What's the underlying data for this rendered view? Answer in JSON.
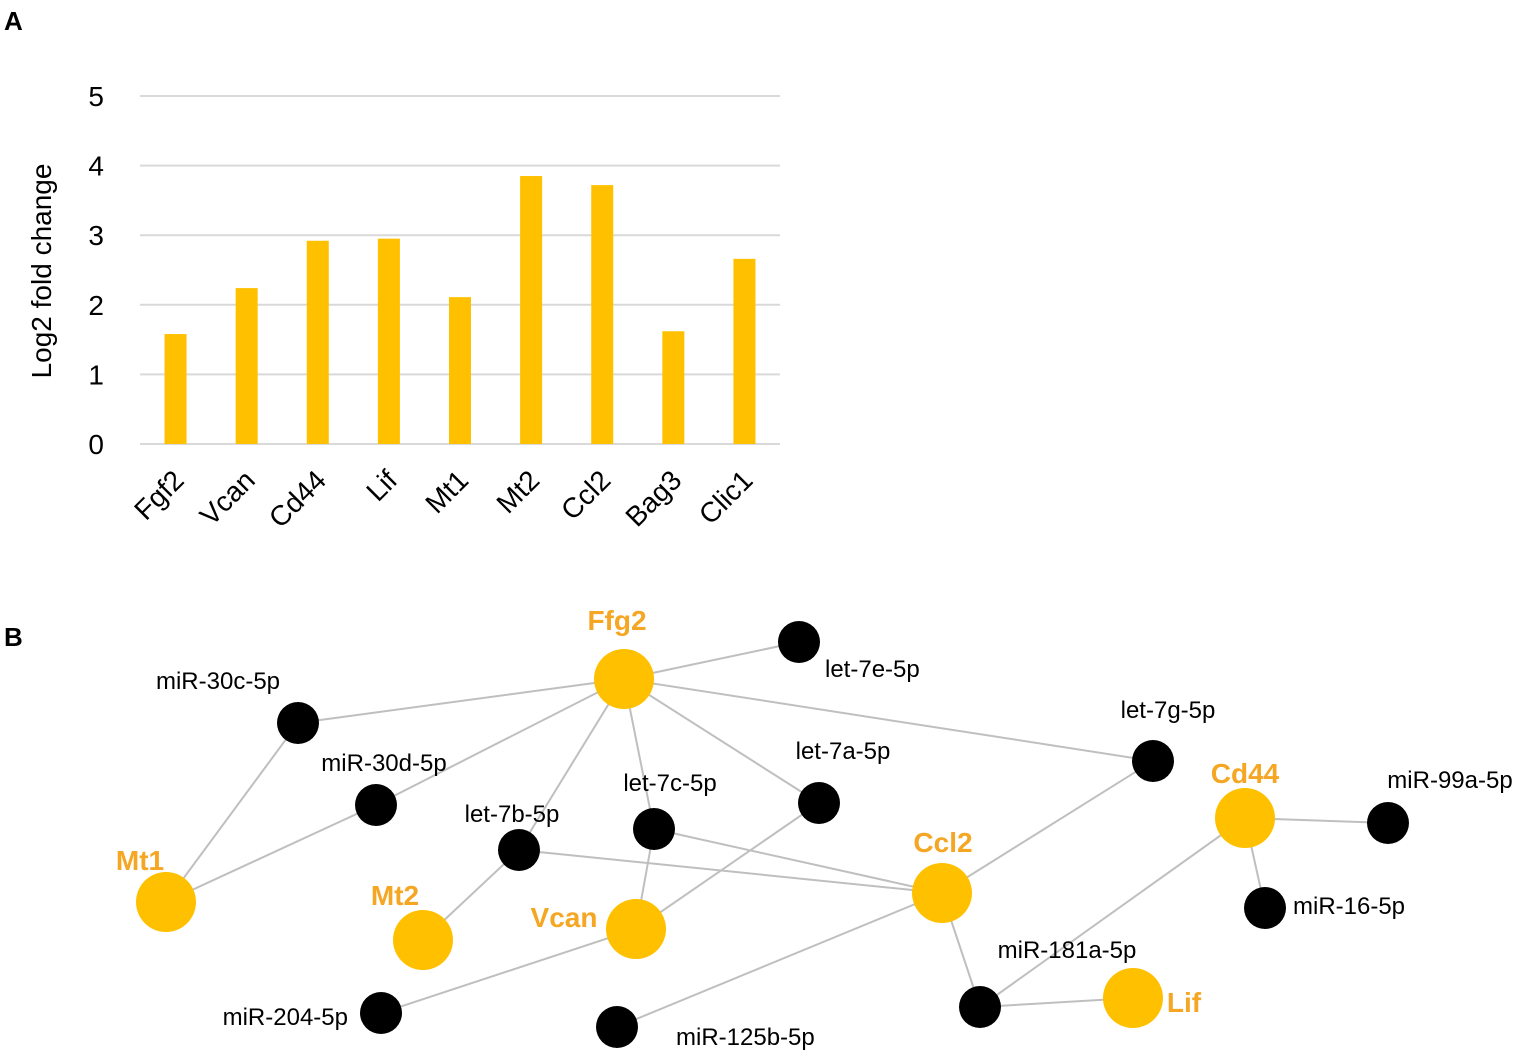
{
  "panels": {
    "a": "A",
    "b": "B"
  },
  "colors": {
    "bar": "#FFC000",
    "gene_node": "#FFC000",
    "gene_text": "#F5A623",
    "mirna_node": "#000000",
    "edge": "#BFBFBF",
    "grid": "#D9D9D9"
  },
  "chart_data": {
    "type": "bar",
    "title": "",
    "xlabel": "",
    "ylabel": "Log2 fold change",
    "ylim": [
      0,
      5
    ],
    "yticks": [
      "0",
      "1",
      "2",
      "3",
      "4",
      "5"
    ],
    "categories": [
      "Fgf2",
      "Vcan",
      "Cd44",
      "Lif",
      "Mt1",
      "Mt2",
      "Ccl2",
      "Bag3",
      "Clic1"
    ],
    "values": [
      1.58,
      2.24,
      2.92,
      2.95,
      2.11,
      3.85,
      3.72,
      1.62,
      2.66
    ],
    "grid": true,
    "legend": "none"
  },
  "network": {
    "genes": [
      {
        "id": "ffg2",
        "label": "Ffg2"
      },
      {
        "id": "mt1",
        "label": "Mt1"
      },
      {
        "id": "mt2",
        "label": "Mt2"
      },
      {
        "id": "vcan",
        "label": "Vcan"
      },
      {
        "id": "ccl2",
        "label": "Ccl2"
      },
      {
        "id": "cd44",
        "label": "Cd44"
      },
      {
        "id": "lif",
        "label": "Lif"
      }
    ],
    "mirnas": [
      {
        "id": "let7e",
        "label": "let-7e-5p"
      },
      {
        "id": "mir30c",
        "label": "miR-30c-5p"
      },
      {
        "id": "let7g",
        "label": "let-7g-5p"
      },
      {
        "id": "mir30d",
        "label": "miR-30d-5p"
      },
      {
        "id": "let7a",
        "label": "let-7a-5p"
      },
      {
        "id": "let7c",
        "label": "let-7c-5p"
      },
      {
        "id": "let7b",
        "label": "let-7b-5p"
      },
      {
        "id": "mir99a",
        "label": "miR-99a-5p"
      },
      {
        "id": "mir16",
        "label": "miR-16-5p"
      },
      {
        "id": "mir181a",
        "label": "miR-181a-5p"
      },
      {
        "id": "mir204",
        "label": "miR-204-5p"
      },
      {
        "id": "mir125b",
        "label": "miR-125b-5p"
      }
    ],
    "edges": [
      [
        "ffg2",
        "let7e"
      ],
      [
        "ffg2",
        "mir30c"
      ],
      [
        "ffg2",
        "let7g"
      ],
      [
        "ffg2",
        "mir30d"
      ],
      [
        "ffg2",
        "let7a"
      ],
      [
        "ffg2",
        "let7c"
      ],
      [
        "ffg2",
        "let7b"
      ],
      [
        "mir30c",
        "mt1"
      ],
      [
        "mir30d",
        "mt1"
      ],
      [
        "let7b",
        "mt2"
      ],
      [
        "let7b",
        "ccl2"
      ],
      [
        "let7c",
        "vcan"
      ],
      [
        "let7c",
        "ccl2"
      ],
      [
        "let7a",
        "vcan"
      ],
      [
        "let7g",
        "ccl2"
      ],
      [
        "ccl2",
        "mir181a"
      ],
      [
        "ccl2",
        "mir125b"
      ],
      [
        "vcan",
        "mir204"
      ],
      [
        "cd44",
        "mir99a"
      ],
      [
        "cd44",
        "mir16"
      ],
      [
        "cd44",
        "mir181a"
      ],
      [
        "mir181a",
        "lif"
      ]
    ]
  }
}
